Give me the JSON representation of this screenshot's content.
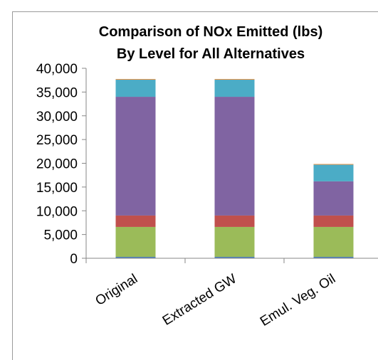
{
  "chart_data": {
    "type": "bar",
    "stacked": true,
    "title": "Comparison of NOx Emitted (lbs)",
    "subtitle": "By Level for All Alternatives",
    "categories": [
      "Original",
      "Extracted GW",
      "Emul. Veg. Oil"
    ],
    "ylim": [
      0,
      40000
    ],
    "yticks": [
      "0",
      "5,000",
      "10,000",
      "15,000",
      "20,000",
      "25,000",
      "30,000",
      "35,000",
      "40,000"
    ],
    "grid": false,
    "legend": "none",
    "series": [
      {
        "color": "#4f81bd",
        "values": [
          300,
          300,
          300
        ]
      },
      {
        "color": "#9bbb59",
        "values": [
          6300,
          6300,
          6300
        ]
      },
      {
        "color": "#c0504d",
        "values": [
          2400,
          2400,
          2400
        ]
      },
      {
        "color": "#8064a2",
        "values": [
          25000,
          25000,
          7200
        ]
      },
      {
        "color": "#4bacc6",
        "values": [
          3600,
          3600,
          3500
        ]
      },
      {
        "color": "#f79646",
        "values": [
          150,
          150,
          150
        ]
      }
    ]
  }
}
